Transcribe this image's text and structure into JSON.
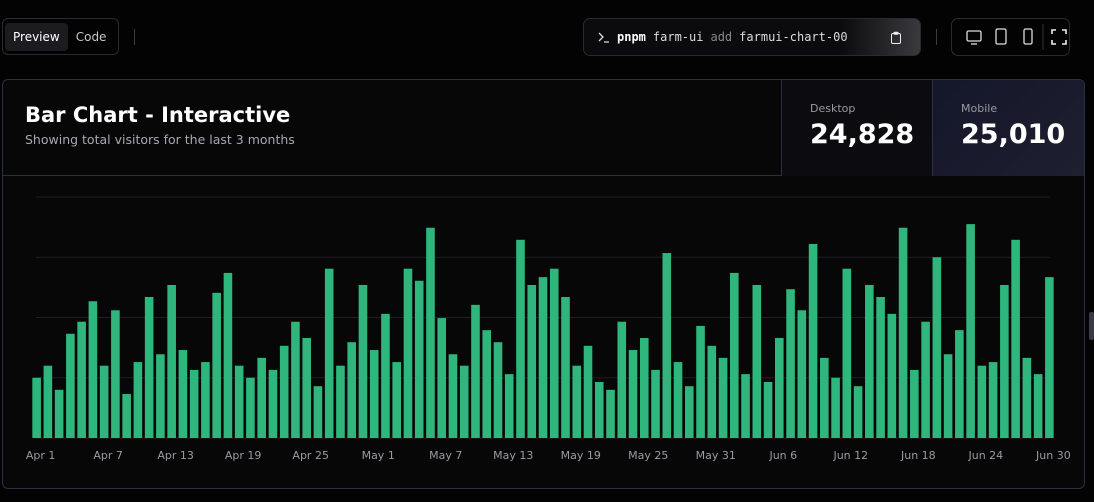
{
  "toolbar": {
    "tabs": [
      "Preview",
      "Code"
    ],
    "command": [
      "pnpm",
      "farm-ui",
      "add",
      "farmui-chart-00"
    ]
  },
  "card": {
    "title": "Bar Chart - Interactive",
    "subtitle": "Showing total visitors for the last 3 months",
    "stats": [
      {
        "label": "Desktop",
        "value": "24,828"
      },
      {
        "label": "Mobile",
        "value": "25,010"
      }
    ]
  },
  "chart_data": {
    "type": "bar",
    "color": "#2eb67d",
    "grid": true,
    "ylim": [
      0,
      400
    ],
    "yticks": [
      0,
      100,
      200,
      300,
      400
    ],
    "categories": [
      "Apr 1",
      null,
      null,
      null,
      null,
      null,
      "Apr 7",
      null,
      null,
      null,
      null,
      null,
      "Apr 13",
      null,
      null,
      null,
      null,
      null,
      "Apr 19",
      null,
      null,
      null,
      null,
      null,
      "Apr 25",
      null,
      null,
      null,
      null,
      null,
      "May 1",
      null,
      null,
      null,
      null,
      null,
      "May 7",
      null,
      null,
      null,
      null,
      null,
      "May 13",
      null,
      null,
      null,
      null,
      null,
      "May 19",
      null,
      null,
      null,
      null,
      null,
      "May 25",
      null,
      null,
      null,
      null,
      null,
      "May 31",
      null,
      null,
      null,
      null,
      null,
      "Jun 6",
      null,
      null,
      null,
      null,
      null,
      "Jun 12",
      null,
      null,
      null,
      null,
      null,
      "Jun 18",
      null,
      null,
      null,
      null,
      null,
      "Jun 24",
      null,
      null,
      null,
      null,
      null,
      "Jun 30"
    ],
    "values": [
      100,
      120,
      80,
      173,
      193,
      227,
      120,
      212,
      73,
      126,
      234,
      139,
      254,
      146,
      113,
      126,
      241,
      274,
      120,
      100,
      133,
      113,
      153,
      193,
      166,
      86,
      281,
      120,
      159,
      254,
      146,
      206,
      126,
      281,
      261,
      349,
      199,
      139,
      120,
      221,
      179,
      159,
      106,
      329,
      254,
      267,
      281,
      234,
      120,
      153,
      93,
      80,
      193,
      146,
      166,
      113,
      307,
      126,
      86,
      186,
      153,
      133,
      274,
      106,
      254,
      93,
      166,
      247,
      212,
      322,
      133,
      100,
      281,
      86,
      254,
      234,
      206,
      349,
      113,
      193,
      300,
      139,
      179,
      355,
      120,
      126,
      254,
      329,
      133,
      106,
      267
    ]
  }
}
